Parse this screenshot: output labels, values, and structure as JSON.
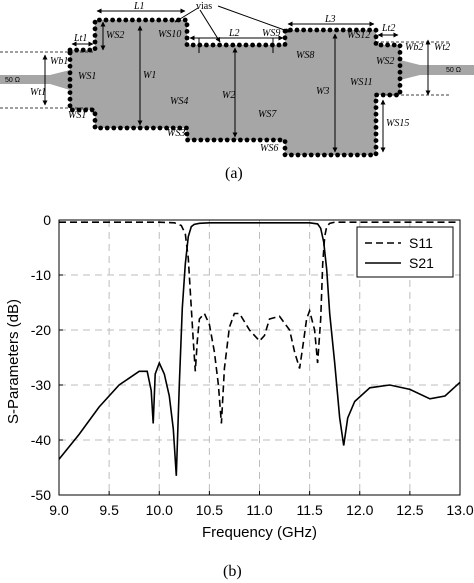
{
  "figure_a": {
    "caption": "(a)",
    "labels": {
      "vias": "vias",
      "L1": "L1",
      "L2": "L2",
      "L3": "L3",
      "Lt1": "Lt1",
      "Lt2": "Lt2",
      "W1": "W1",
      "W2": "W2",
      "W3": "W3",
      "Wt1": "Wt1",
      "Wt2": "Wt2",
      "Wb1": "Wb1",
      "Wb2": "Wb2",
      "WS1": "WS1",
      "WS2": "WS2",
      "WS3": "WS3",
      "WS4": "WS4",
      "WS6": "WS6",
      "WS7": "WS7",
      "WS8": "WS8",
      "WS9": "WS9",
      "WS10": "WS10",
      "WS11": "WS11",
      "WS12": "WS12",
      "WS15": "WS15"
    },
    "port_left": "50 Ω",
    "port_right": "50 Ω",
    "colors": {
      "substrate": "#a6a6a6",
      "via": "#000000"
    }
  },
  "figure_b": {
    "caption": "(b)",
    "chart_data": {
      "type": "line",
      "xlabel": "Frequency (GHz)",
      "ylabel": "S-Parameters (dB)",
      "xlim": [
        9.0,
        13.0
      ],
      "ylim": [
        -50,
        0
      ],
      "x_ticks": [
        "9.0",
        "9.5",
        "10.0",
        "10.5",
        "11.0",
        "11.5",
        "12.0",
        "12.5",
        "13.0"
      ],
      "y_ticks": [
        "0",
        "-10",
        "-20",
        "-30",
        "-40",
        "-50"
      ],
      "grid": true,
      "legend_position": "top-right",
      "series": [
        {
          "name": "S11",
          "style": "dashed",
          "x": [
            9.0,
            9.5,
            10.0,
            10.15,
            10.22,
            10.26,
            10.29,
            10.32,
            10.34,
            10.36,
            10.38,
            10.4,
            10.45,
            10.5,
            10.55,
            10.59,
            10.62,
            10.65,
            10.7,
            10.75,
            10.8,
            10.9,
            11.0,
            11.05,
            11.1,
            11.2,
            11.3,
            11.35,
            11.4,
            11.44,
            11.47,
            11.5,
            11.55,
            11.58,
            11.61,
            11.63,
            11.65,
            11.67,
            11.7,
            11.75,
            12.0,
            12.5,
            13.0
          ],
          "y": [
            -0.4,
            -0.4,
            -0.4,
            -0.5,
            -1.0,
            -2.5,
            -7.0,
            -16.0,
            -22.0,
            -27.5,
            -22.0,
            -18.0,
            -17.0,
            -19.0,
            -24.0,
            -30.0,
            -37.0,
            -27.0,
            -19.5,
            -17.0,
            -17.0,
            -20.0,
            -22.0,
            -21.0,
            -18.0,
            -17.5,
            -20.0,
            -24.0,
            -27.0,
            -22.0,
            -18.0,
            -16.5,
            -20.0,
            -26.0,
            -18.0,
            -8.0,
            -3.0,
            -1.2,
            -0.6,
            -0.4,
            -0.4,
            -0.4,
            -0.4
          ]
        },
        {
          "name": "S21",
          "style": "solid",
          "x": [
            9.0,
            9.2,
            9.4,
            9.6,
            9.8,
            9.88,
            9.92,
            9.94,
            9.96,
            10.0,
            10.05,
            10.1,
            10.14,
            10.17,
            10.2,
            10.23,
            10.26,
            10.29,
            10.32,
            10.35,
            10.4,
            10.5,
            11.0,
            11.5,
            11.58,
            11.61,
            11.64,
            11.67,
            11.7,
            11.75,
            11.8,
            11.84,
            11.88,
            11.95,
            12.1,
            12.3,
            12.5,
            12.7,
            12.85,
            13.0
          ],
          "y": [
            -43.5,
            -39.0,
            -34.0,
            -30.0,
            -27.5,
            -27.5,
            -31.0,
            -37.0,
            -28.0,
            -26.0,
            -28.0,
            -32.0,
            -38.0,
            -46.5,
            -30.0,
            -16.0,
            -8.0,
            -3.0,
            -1.2,
            -0.8,
            -0.6,
            -0.5,
            -0.5,
            -0.5,
            -0.7,
            -1.5,
            -4.0,
            -9.0,
            -17.0,
            -26.0,
            -36.0,
            -41.0,
            -36.0,
            -33.0,
            -30.5,
            -30.0,
            -30.8,
            -32.5,
            -32.0,
            -29.5
          ]
        }
      ]
    }
  }
}
